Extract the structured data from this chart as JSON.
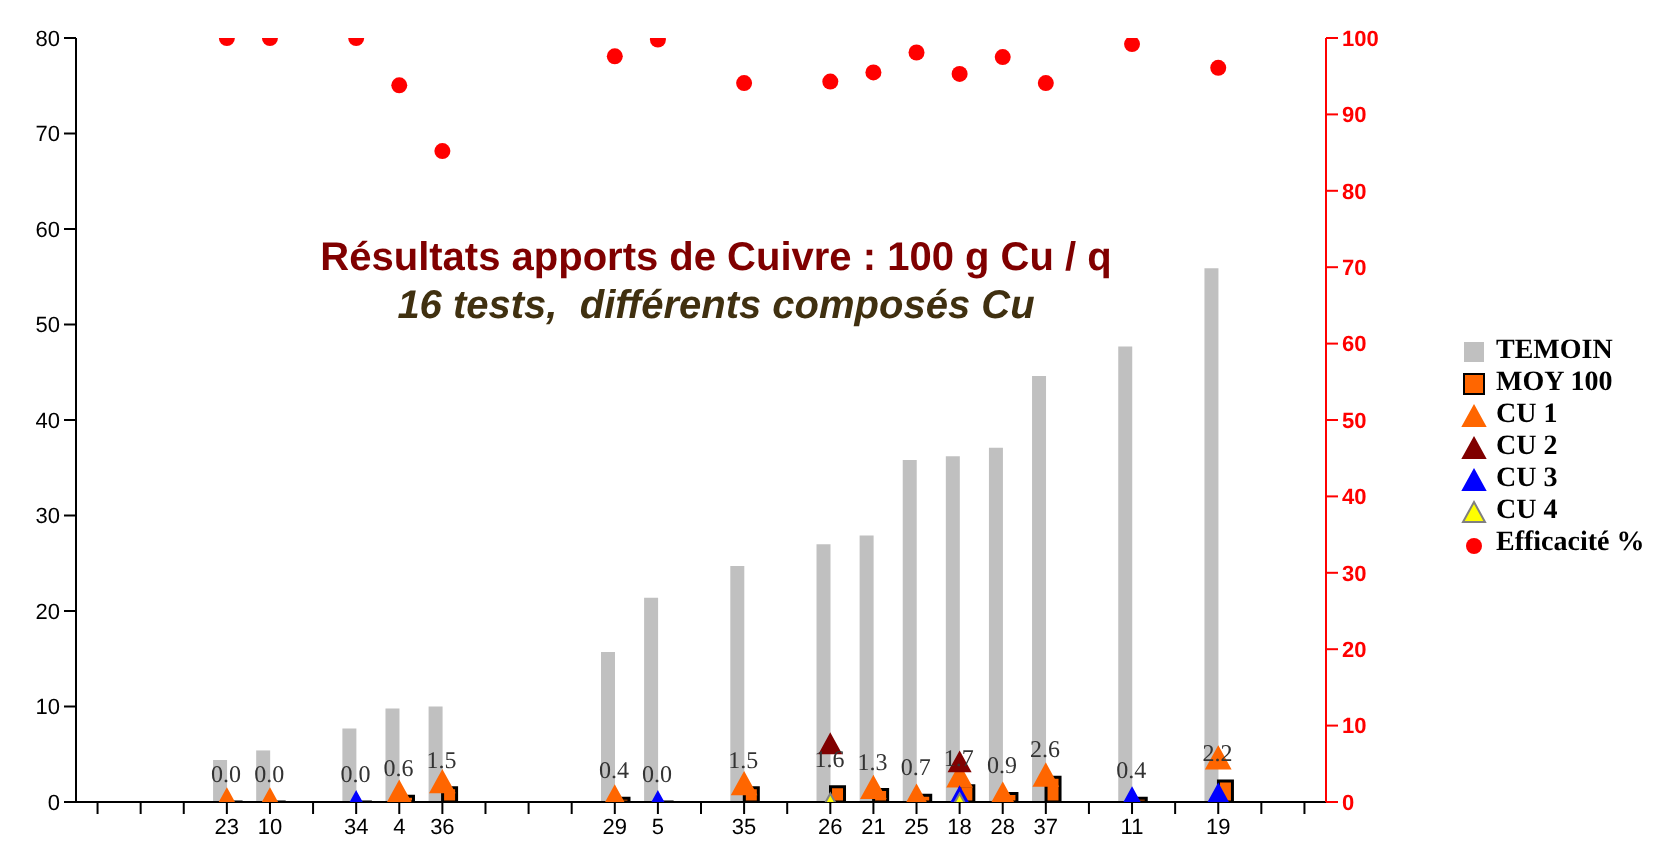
{
  "chart_data": {
    "type": "bar",
    "title": "Résultats apports de Cuivre : 100 g Cu / q",
    "subtitle": "16 tests,  différents composés Cu",
    "categories": [
      null,
      null,
      null,
      "23",
      "10",
      null,
      "34",
      "4",
      "36",
      null,
      null,
      null,
      "29",
      "5",
      null,
      "35",
      null,
      "26",
      "21",
      "25",
      "18",
      "28",
      "37",
      null,
      "11",
      null,
      "19",
      null,
      null
    ],
    "series": [
      {
        "name": "TEMOIN",
        "color": "#c0c0c0",
        "values": [
          null,
          null,
          null,
          4.4,
          5.4,
          null,
          7.7,
          9.8,
          10.0,
          null,
          null,
          null,
          15.7,
          21.4,
          null,
          24.7,
          null,
          27.0,
          27.9,
          35.8,
          36.2,
          37.1,
          44.6,
          null,
          47.7,
          null,
          55.9,
          null,
          null
        ]
      },
      {
        "name": "MOY 100",
        "color": "#ff6600",
        "values": [
          null,
          null,
          null,
          0.0,
          0.0,
          null,
          0.0,
          0.6,
          1.5,
          null,
          null,
          null,
          0.4,
          0.0,
          null,
          1.5,
          null,
          1.6,
          1.3,
          0.7,
          1.7,
          0.9,
          2.6,
          null,
          0.4,
          null,
          2.2,
          null,
          null
        ],
        "value_labels": [
          null,
          null,
          null,
          "0.0",
          "0.0",
          null,
          "0.0",
          "0.6",
          "1.5",
          null,
          null,
          null,
          "0.4",
          "0.0",
          null,
          "1.5",
          null,
          "1.6",
          "1.3",
          "0.7",
          "1.7",
          "0.9",
          "2.6",
          null,
          "0.4",
          null,
          "2.2",
          null,
          null
        ]
      },
      {
        "name": "CU 1",
        "type": "scatter",
        "marker": "triangle",
        "color": "#ff6600",
        "values": [
          null,
          null,
          null,
          0.0,
          0.0,
          null,
          null,
          0.8,
          1.9,
          null,
          null,
          null,
          0.3,
          null,
          null,
          1.7,
          null,
          null,
          1.3,
          0.4,
          2.5,
          0.6,
          2.6,
          null,
          null,
          null,
          4.4,
          null,
          null
        ]
      },
      {
        "name": "CU 2",
        "type": "scatter",
        "marker": "triangle",
        "color": "#800000",
        "values": [
          null,
          null,
          null,
          null,
          null,
          null,
          null,
          null,
          null,
          null,
          null,
          null,
          null,
          null,
          null,
          null,
          null,
          5.9,
          null,
          null,
          4.0,
          null,
          null,
          null,
          null,
          null,
          null,
          null,
          null
        ]
      },
      {
        "name": "CU 3",
        "type": "scatter",
        "marker": "triangle",
        "color": "#0000ff",
        "values": [
          null,
          null,
          null,
          null,
          null,
          null,
          0.0,
          null,
          null,
          null,
          null,
          null,
          null,
          0.0,
          null,
          null,
          null,
          null,
          null,
          null,
          0.5,
          null,
          null,
          null,
          0.4,
          null,
          0.8,
          null,
          null
        ]
      },
      {
        "name": "CU 4",
        "type": "scatter",
        "marker": "triangle",
        "color": "#ffff00",
        "values": [
          null,
          null,
          null,
          null,
          null,
          null,
          null,
          null,
          null,
          null,
          null,
          null,
          null,
          null,
          null,
          null,
          null,
          0.0,
          null,
          null,
          0.0,
          null,
          null,
          null,
          null,
          null,
          null,
          null,
          null
        ]
      },
      {
        "name": "Efficacité %",
        "type": "scatter",
        "marker": "circle",
        "axis": "y2",
        "color": "#ff0000",
        "values": [
          null,
          null,
          null,
          100,
          100,
          null,
          100,
          93.8,
          85.2,
          null,
          null,
          null,
          97.6,
          99.8,
          null,
          94.1,
          null,
          94.3,
          95.5,
          98.1,
          95.3,
          97.5,
          94.1,
          null,
          99.2,
          null,
          96.1,
          null,
          null
        ]
      }
    ],
    "ylim": [
      0,
      80
    ],
    "yticks": [
      0,
      10,
      20,
      30,
      40,
      50,
      60,
      70,
      80
    ],
    "y2lim": [
      0,
      100
    ],
    "y2ticks": [
      0,
      10,
      20,
      30,
      40,
      50,
      60,
      70,
      80,
      90,
      100
    ],
    "grid": false,
    "legend": "right"
  }
}
